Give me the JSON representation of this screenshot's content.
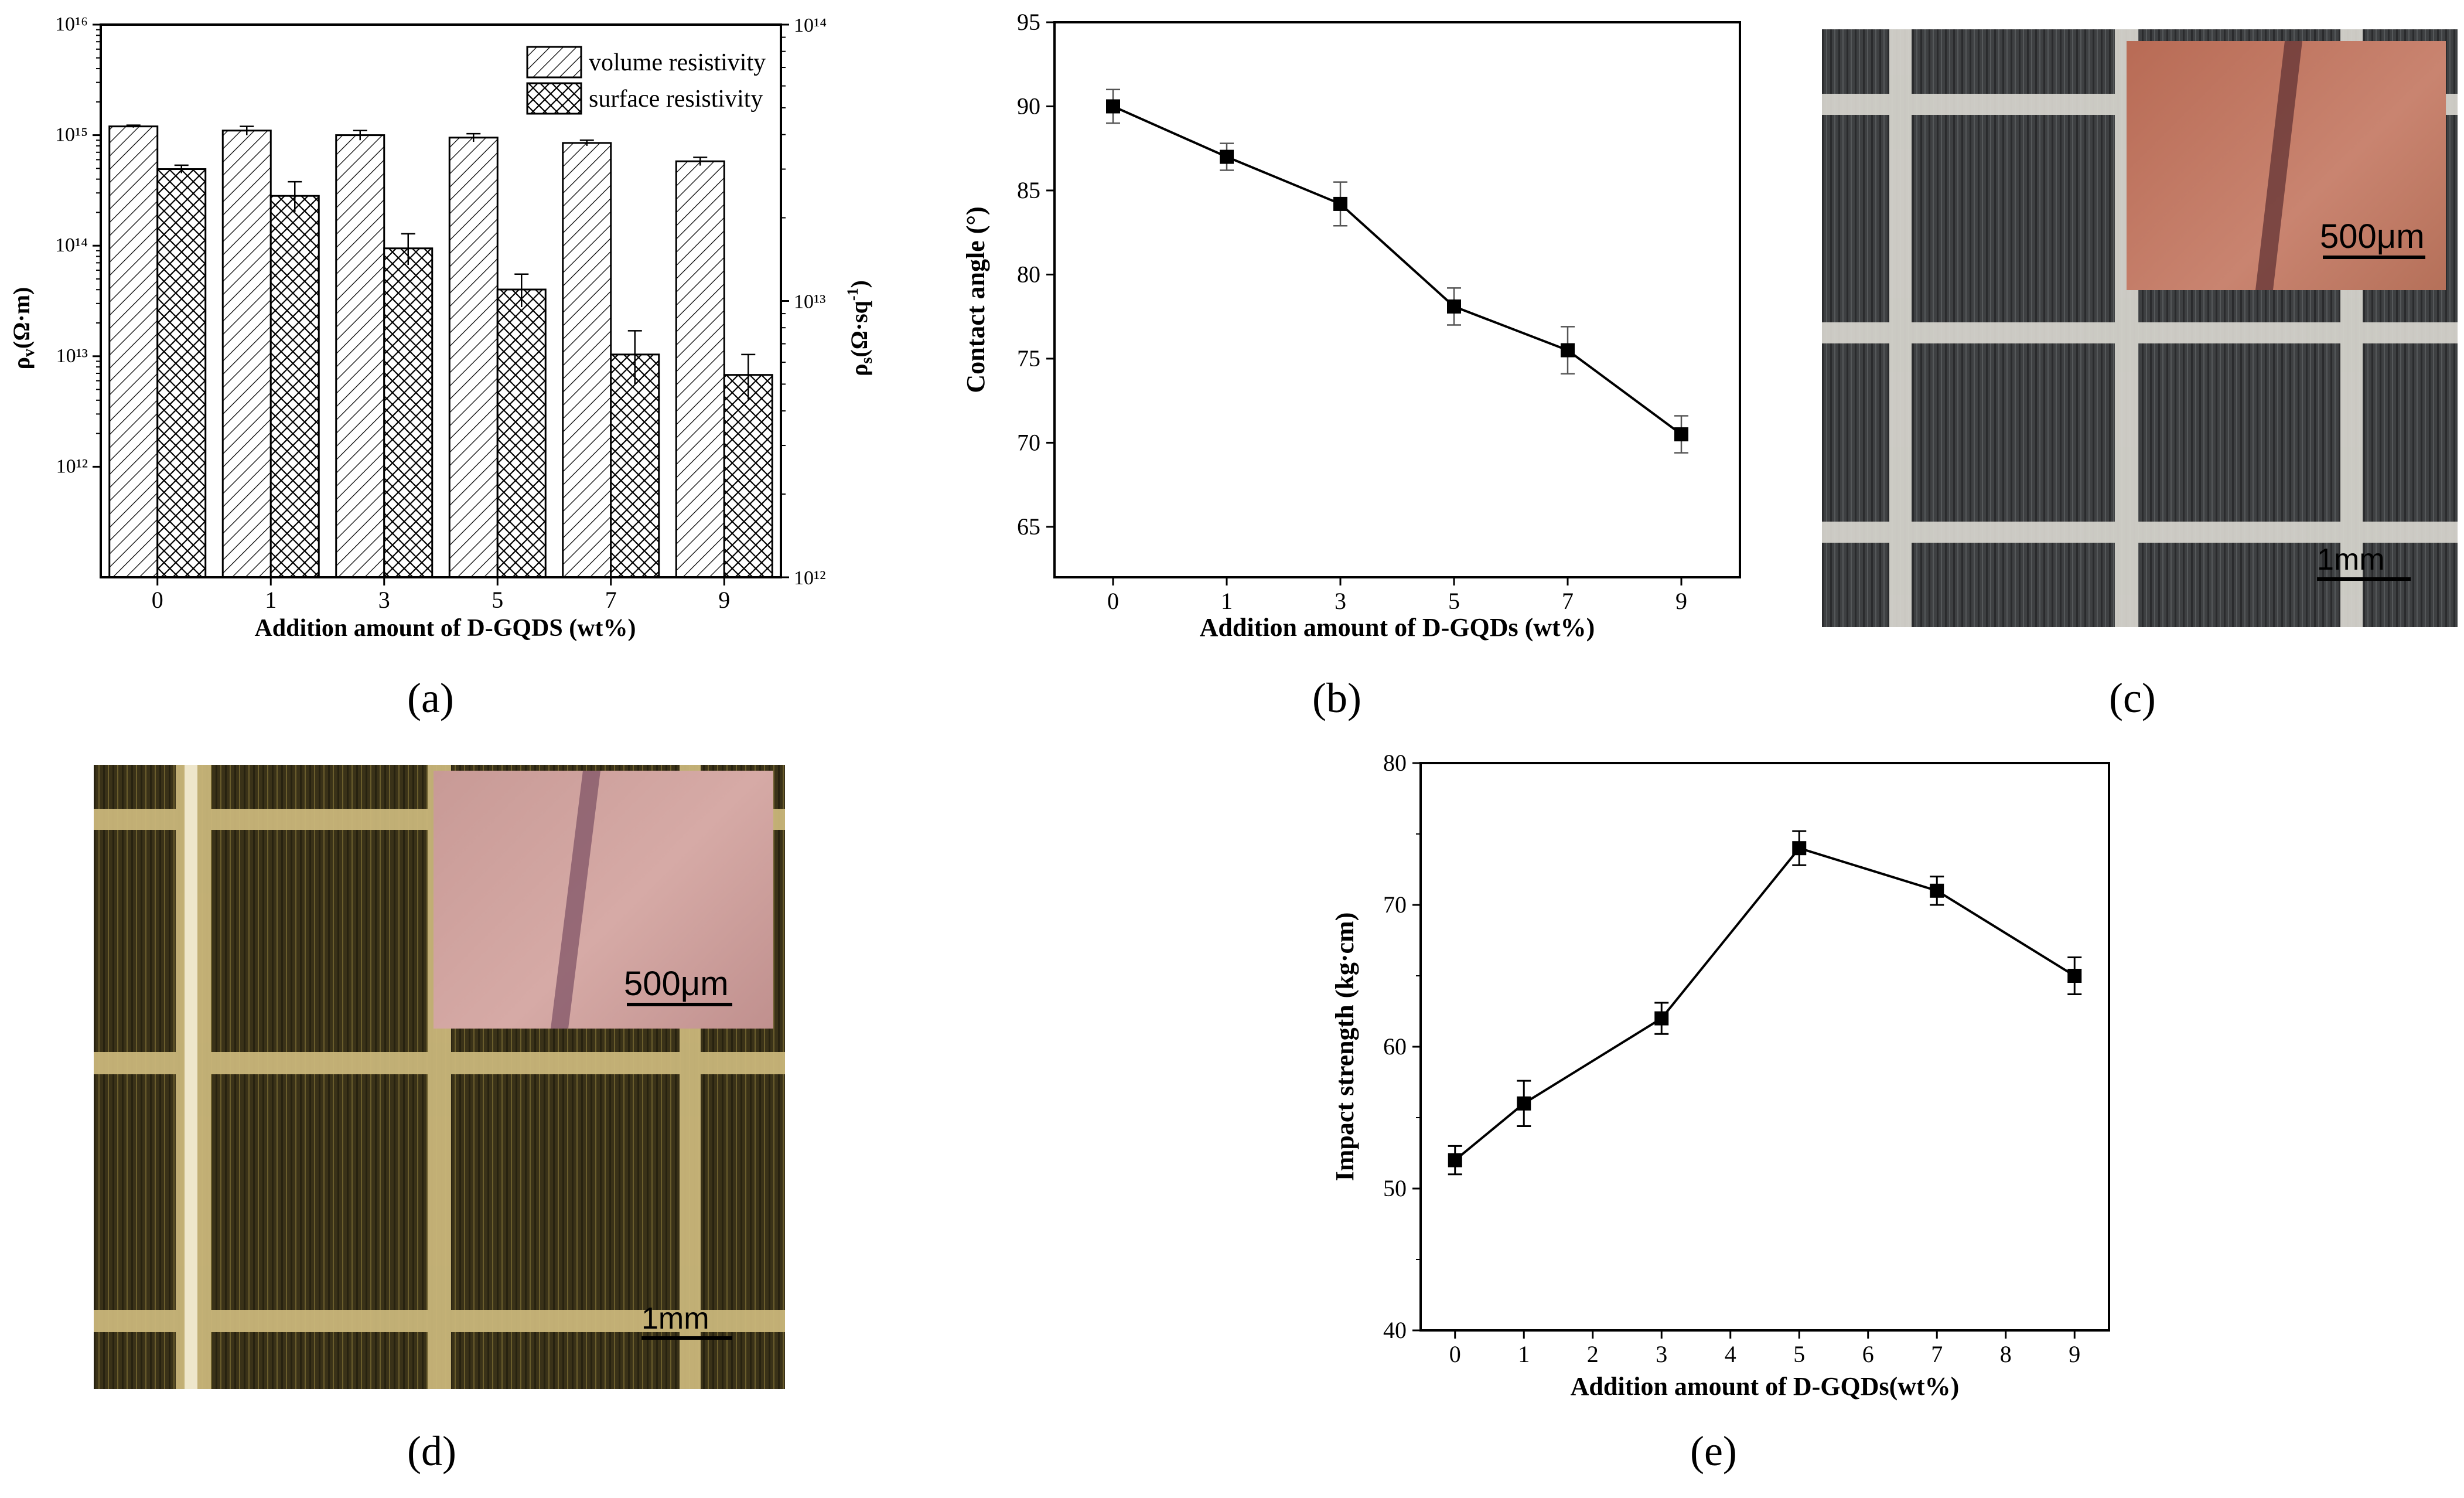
{
  "panel_labels": {
    "a": "(a)",
    "b": "(b)",
    "c": "(c)",
    "d": "(d)",
    "e": "(e)"
  },
  "colors": {
    "line": "#000000",
    "background": "#ffffff",
    "photo_c_base": "#3b3d3f",
    "photo_d_base": "#3a3214",
    "inset": "#c17a5e"
  },
  "photo_c": {
    "inset_scale": "500μm",
    "main_scale": "1mm"
  },
  "photo_d": {
    "inset_scale": "500μm",
    "main_scale": "1mm"
  },
  "chart_data": [
    {
      "id": "a",
      "type": "bar",
      "title": "",
      "xlabel": "Addition amount of D-GQDS (wt%)",
      "ylabel_left": "ρv(Ω·m)",
      "ylabel_right": "ρs(Ω·sq-1)",
      "y_scale": "log",
      "ylim_left": [
        100000000000.0,
        1e+16
      ],
      "ylim_right": [
        1000000000000.0,
        100000000000000.0
      ],
      "categories": [
        "0",
        "1",
        "3",
        "5",
        "7",
        "9"
      ],
      "y_ticks_left": [
        "10¹²",
        "10¹³",
        "10¹⁴",
        "10¹⁵",
        "10¹⁶"
      ],
      "y_ticks_right": [
        "10¹²",
        "10¹³",
        "10¹⁴"
      ],
      "legend_position": "top-right",
      "series": [
        {
          "name": "volume resistivity",
          "axis": "left",
          "pattern": "diagonal",
          "values": [
            1200000000000000.0,
            1100000000000000.0,
            1000000000000000.0,
            950000000000000.0,
            850000000000000.0,
            580000000000000.0
          ],
          "errors": [
            30000000000000.0,
            100000000000000.0,
            100000000000000.0,
            80000000000000.0,
            50000000000000.0,
            50000000000000.0
          ]
        },
        {
          "name": "surface resistivity",
          "axis": "right",
          "pattern": "crosshatch",
          "values": [
            30000000000000.0,
            24000000000000.0,
            15500000000000.0,
            11000000000000.0,
            6400000000000.0,
            5400000000000.0
          ],
          "errors": [
            1000000000000.0,
            3000000000000.0,
            2000000000000.0,
            1500000000000.0,
            1400000000000.0,
            1000000000000.0
          ]
        }
      ]
    },
    {
      "id": "b",
      "type": "line",
      "title": "",
      "xlabel": "Addition amount of D-GQDs (wt%)",
      "ylabel": "Contact angle (°)",
      "categories": [
        "0",
        "1",
        "3",
        "5",
        "7",
        "9"
      ],
      "ylim": [
        62,
        95
      ],
      "y_ticks": [
        65,
        70,
        75,
        80,
        85,
        90,
        95
      ],
      "series": [
        {
          "values": [
            90,
            87,
            84.2,
            78.1,
            75.5,
            70.5
          ],
          "errors": [
            1.0,
            0.8,
            1.3,
            1.1,
            1.4,
            1.1
          ]
        }
      ]
    },
    {
      "id": "e",
      "type": "line",
      "title": "",
      "xlabel": "Addition amount of D-GQDs(wt%)",
      "ylabel": "Impact strength (kg·cm)",
      "x_ticks": [
        "0",
        "1",
        "2",
        "3",
        "4",
        "5",
        "6",
        "7",
        "8",
        "9"
      ],
      "xlim": [
        -0.5,
        9.5
      ],
      "ylim": [
        40,
        80
      ],
      "y_ticks": [
        40,
        50,
        60,
        70,
        80
      ],
      "series": [
        {
          "x": [
            0,
            1,
            3,
            5,
            7,
            9
          ],
          "values": [
            52,
            56,
            62,
            74,
            71,
            65
          ],
          "errors": [
            1.0,
            1.6,
            1.1,
            1.2,
            1.0,
            1.3
          ]
        }
      ]
    }
  ]
}
